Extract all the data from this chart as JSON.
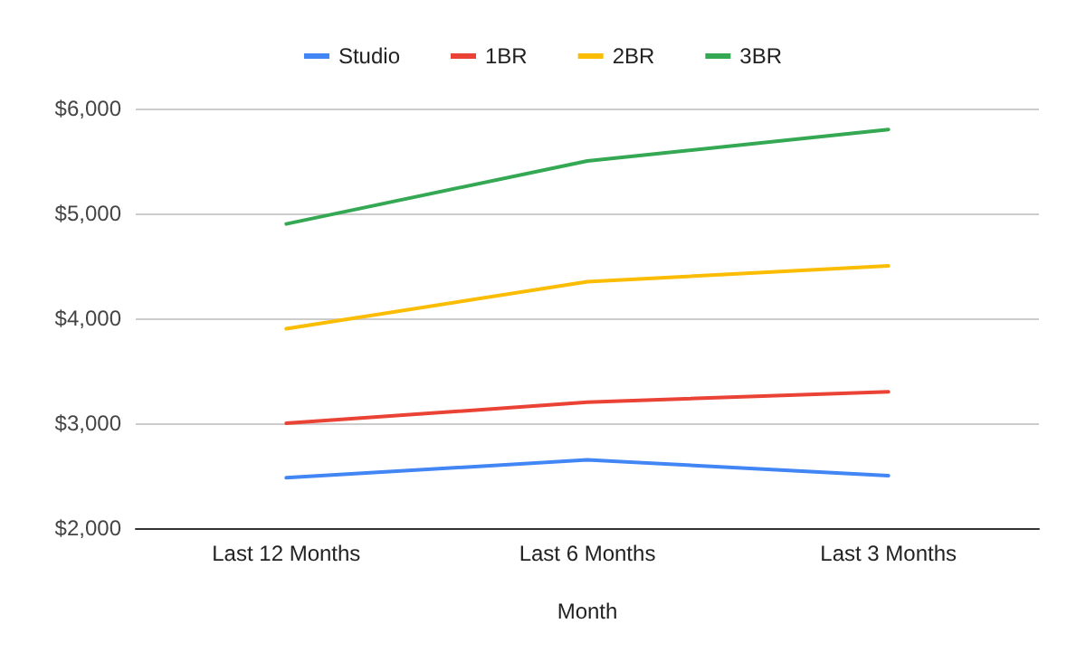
{
  "chart_data": {
    "type": "line",
    "xlabel": "Month",
    "categories": [
      "Last 12 Months",
      "Last 6 Months",
      "Last 3 Months"
    ],
    "series": [
      {
        "name": "Studio",
        "color": "#4285f4",
        "values": [
          2480,
          2650,
          2500
        ]
      },
      {
        "name": "1BR",
        "color": "#ea4335",
        "values": [
          3000,
          3200,
          3300
        ]
      },
      {
        "name": "2BR",
        "color": "#fbbc04",
        "values": [
          3900,
          4350,
          4500
        ]
      },
      {
        "name": "3BR",
        "color": "#34a853",
        "values": [
          4900,
          5500,
          5800
        ]
      }
    ],
    "ylim": [
      2000,
      6000
    ],
    "yticks": [
      {
        "value": 2000,
        "label": "$2,000"
      },
      {
        "value": 3000,
        "label": "$3,000"
      },
      {
        "value": 4000,
        "label": "$4,000"
      },
      {
        "value": 5000,
        "label": "$5,000"
      },
      {
        "value": 6000,
        "label": "$6,000"
      }
    ],
    "grid": "y",
    "legend": "top",
    "marker": "none"
  }
}
